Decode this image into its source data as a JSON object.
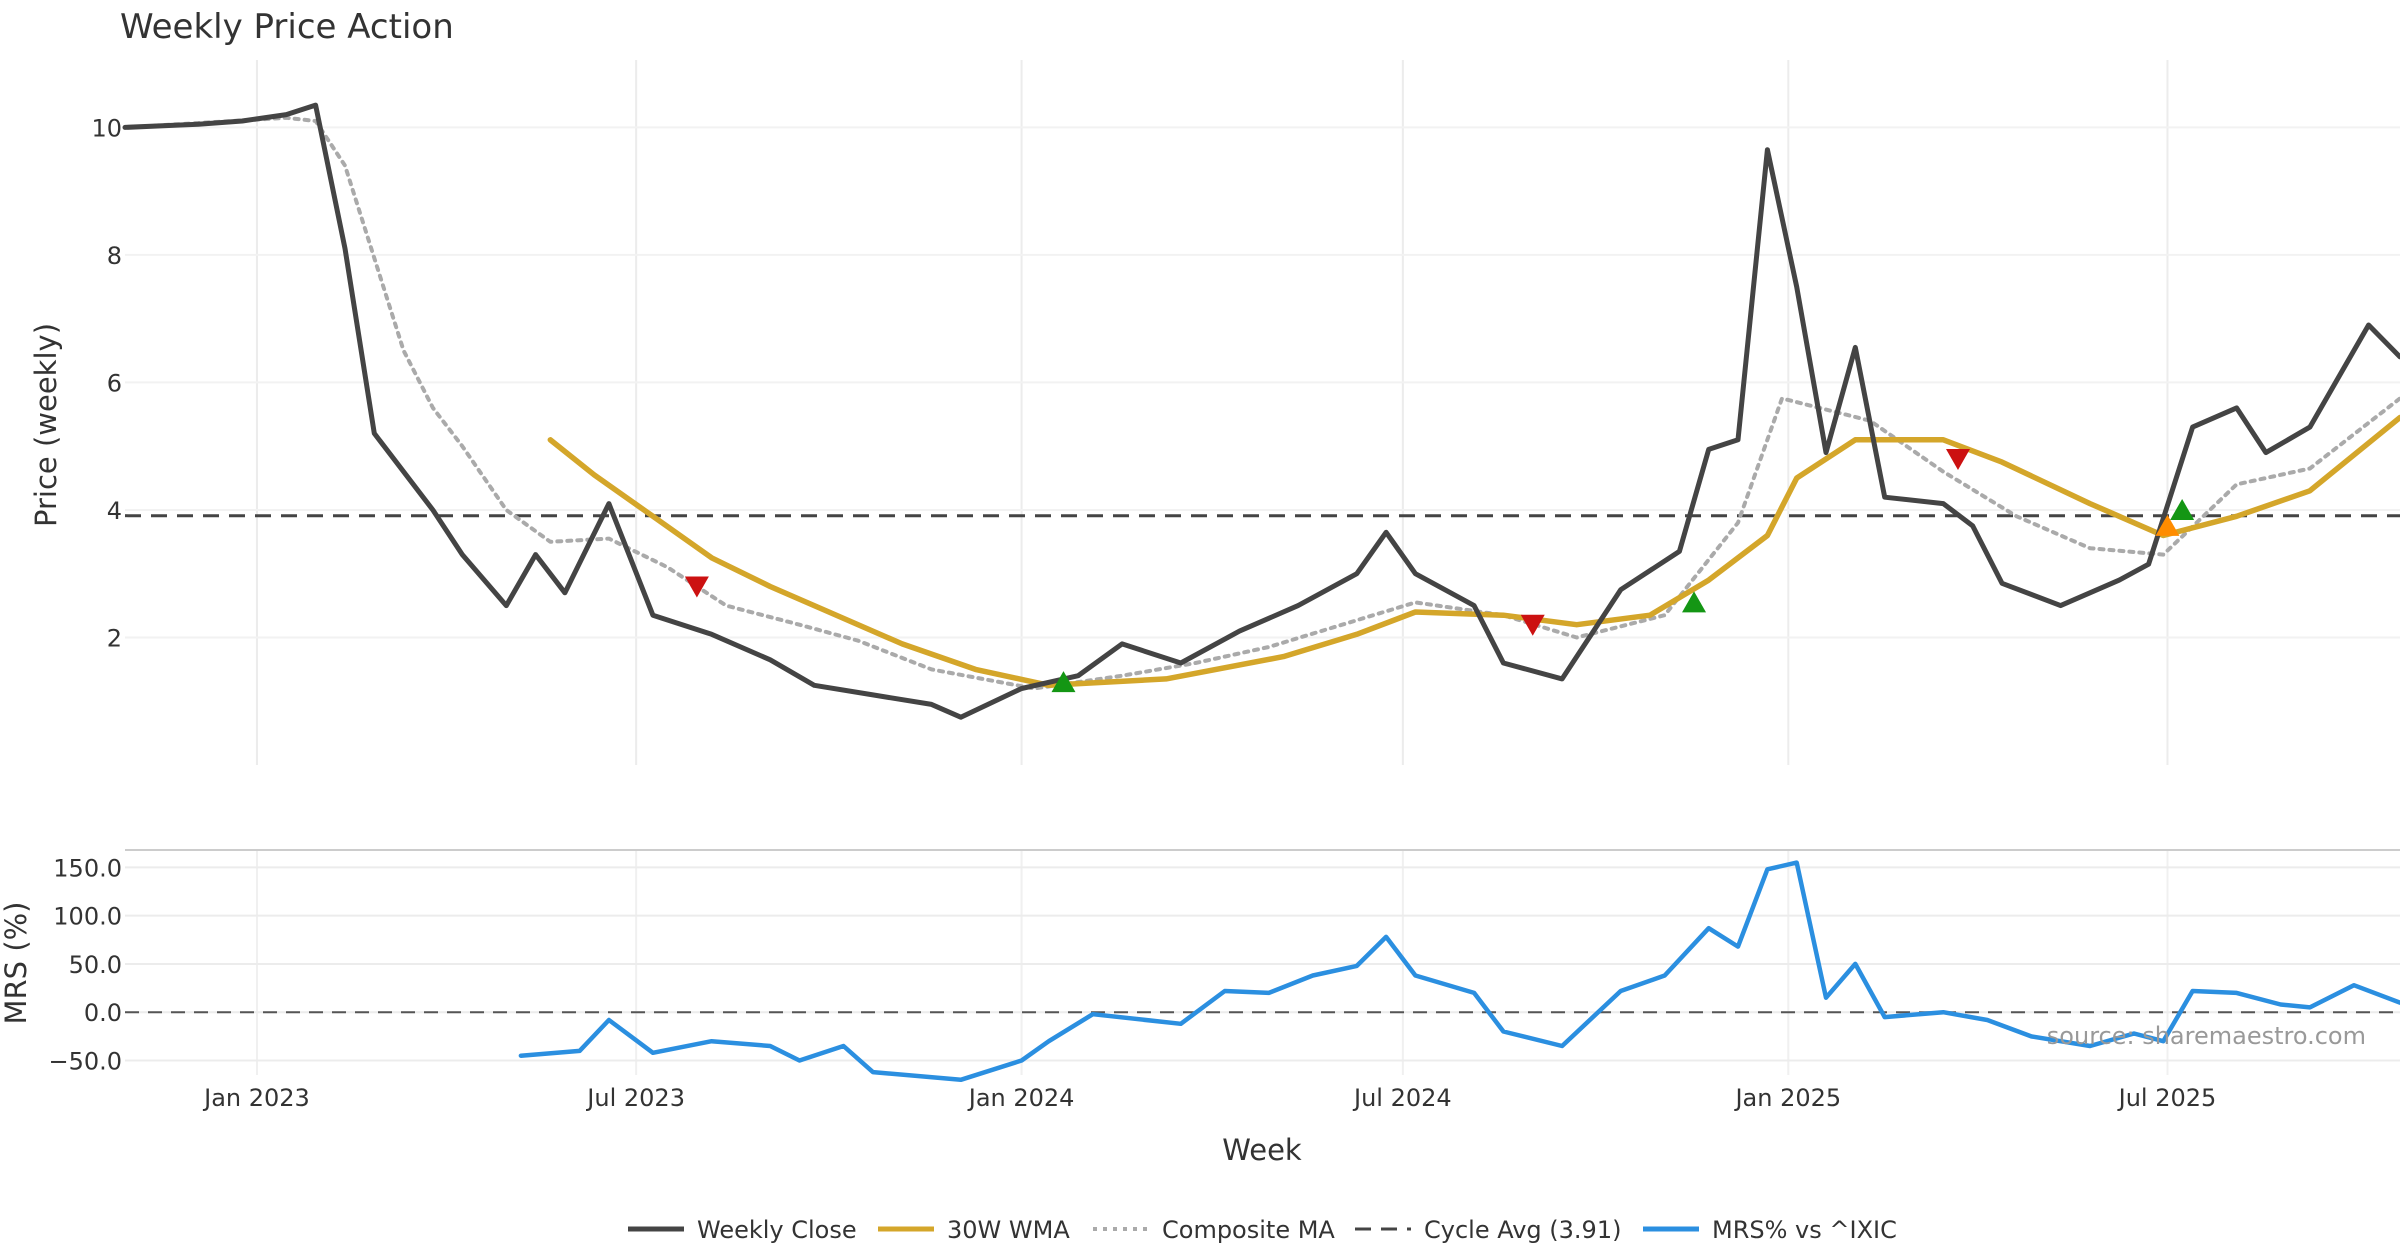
{
  "chart_data": {
    "title": "Weekly Price Action",
    "source": "source: sharemaestro.com",
    "xlabel": "Week",
    "x_ticks": [
      {
        "date": "2023-01-01",
        "label": "Jan 2023"
      },
      {
        "date": "2023-07-01",
        "label": "Jul 2023"
      },
      {
        "date": "2024-01-01",
        "label": "Jan 2024"
      },
      {
        "date": "2024-07-01",
        "label": "Jul 2024"
      },
      {
        "date": "2025-01-01",
        "label": "Jan 2025"
      },
      {
        "date": "2025-07-01",
        "label": "Jul 2025"
      }
    ],
    "x_range": [
      "2022-10-30",
      "2025-10-20"
    ],
    "price_panel": {
      "type": "line",
      "ylabel": "Price (weekly)",
      "ylim": [
        0.0,
        10.9
      ],
      "y_ticks": [
        {
          "value": 2,
          "label": "2"
        },
        {
          "value": 4,
          "label": "4"
        },
        {
          "value": 6,
          "label": "6"
        },
        {
          "value": 8,
          "label": "8"
        },
        {
          "value": 10,
          "label": "10"
        }
      ],
      "cycle_avg": 3.91,
      "series": [
        {
          "name": "Weekly Close",
          "color": "#444444",
          "style": "solid",
          "points": [
            [
              "2022-10-30",
              10.0
            ],
            [
              "2022-12-04",
              10.05
            ],
            [
              "2022-12-25",
              10.1
            ],
            [
              "2023-01-15",
              10.2
            ],
            [
              "2023-01-29",
              10.35
            ],
            [
              "2023-02-12",
              8.1
            ],
            [
              "2023-02-26",
              5.2
            ],
            [
              "2023-03-26",
              4.0
            ],
            [
              "2023-04-09",
              3.3
            ],
            [
              "2023-04-30",
              2.5
            ],
            [
              "2023-05-14",
              3.3
            ],
            [
              "2023-05-28",
              2.7
            ],
            [
              "2023-06-18",
              4.1
            ],
            [
              "2023-07-09",
              2.35
            ],
            [
              "2023-08-06",
              2.05
            ],
            [
              "2023-09-03",
              1.65
            ],
            [
              "2023-09-24",
              1.25
            ],
            [
              "2023-10-22",
              1.1
            ],
            [
              "2023-11-19",
              0.95
            ],
            [
              "2023-12-03",
              0.75
            ],
            [
              "2024-01-01",
              1.2
            ],
            [
              "2024-01-28",
              1.4
            ],
            [
              "2024-02-18",
              1.9
            ],
            [
              "2024-03-17",
              1.6
            ],
            [
              "2024-04-14",
              2.1
            ],
            [
              "2024-05-12",
              2.5
            ],
            [
              "2024-06-09",
              3.0
            ],
            [
              "2024-06-23",
              3.65
            ],
            [
              "2024-07-07",
              3.0
            ],
            [
              "2024-08-04",
              2.5
            ],
            [
              "2024-08-18",
              1.6
            ],
            [
              "2024-09-15",
              1.35
            ],
            [
              "2024-10-13",
              2.75
            ],
            [
              "2024-11-10",
              3.35
            ],
            [
              "2024-11-24",
              4.95
            ],
            [
              "2024-12-08",
              5.1
            ],
            [
              "2024-12-22",
              9.65
            ],
            [
              "2025-01-05",
              7.5
            ],
            [
              "2025-01-19",
              4.9
            ],
            [
              "2025-02-02",
              6.55
            ],
            [
              "2025-02-16",
              4.2
            ],
            [
              "2025-03-16",
              4.1
            ],
            [
              "2025-03-30",
              3.75
            ],
            [
              "2025-04-13",
              2.85
            ],
            [
              "2025-05-11",
              2.5
            ],
            [
              "2025-06-08",
              2.9
            ],
            [
              "2025-06-22",
              3.15
            ],
            [
              "2025-07-13",
              5.3
            ],
            [
              "2025-08-03",
              5.6
            ],
            [
              "2025-08-17",
              4.9
            ],
            [
              "2025-09-07",
              5.3
            ],
            [
              "2025-10-05",
              6.9
            ],
            [
              "2025-10-20",
              6.4
            ]
          ]
        },
        {
          "name": "30W WMA",
          "color": "#d4a62a",
          "style": "solid",
          "points": [
            [
              "2023-05-21",
              5.1
            ],
            [
              "2023-06-11",
              4.55
            ],
            [
              "2023-07-09",
              3.9
            ],
            [
              "2023-08-06",
              3.25
            ],
            [
              "2023-09-03",
              2.8
            ],
            [
              "2023-10-01",
              2.4
            ],
            [
              "2023-11-05",
              1.9
            ],
            [
              "2023-12-10",
              1.5
            ],
            [
              "2024-01-14",
              1.25
            ],
            [
              "2024-03-10",
              1.35
            ],
            [
              "2024-05-05",
              1.7
            ],
            [
              "2024-06-09",
              2.05
            ],
            [
              "2024-07-07",
              2.4
            ],
            [
              "2024-08-18",
              2.35
            ],
            [
              "2024-09-22",
              2.2
            ],
            [
              "2024-10-27",
              2.35
            ],
            [
              "2024-11-24",
              2.9
            ],
            [
              "2024-12-22",
              3.6
            ],
            [
              "2025-01-05",
              4.5
            ],
            [
              "2025-02-02",
              5.1
            ],
            [
              "2025-03-16",
              5.1
            ],
            [
              "2025-04-13",
              4.75
            ],
            [
              "2025-05-25",
              4.1
            ],
            [
              "2025-06-29",
              3.6
            ],
            [
              "2025-08-03",
              3.9
            ],
            [
              "2025-09-07",
              4.3
            ],
            [
              "2025-10-20",
              5.45
            ]
          ]
        },
        {
          "name": "Composite MA",
          "color": "#aaaaaa",
          "style": "dotted",
          "points": [
            [
              "2022-10-30",
              10.0
            ],
            [
              "2023-01-15",
              10.15
            ],
            [
              "2023-01-29",
              10.1
            ],
            [
              "2023-02-12",
              9.4
            ],
            [
              "2023-03-12",
              6.5
            ],
            [
              "2023-03-26",
              5.6
            ],
            [
              "2023-04-09",
              5.0
            ],
            [
              "2023-04-30",
              4.0
            ],
            [
              "2023-05-21",
              3.5
            ],
            [
              "2023-06-18",
              3.55
            ],
            [
              "2023-07-16",
              3.1
            ],
            [
              "2023-08-13",
              2.5
            ],
            [
              "2023-09-17",
              2.2
            ],
            [
              "2023-10-15",
              1.95
            ],
            [
              "2023-11-19",
              1.5
            ],
            [
              "2024-01-07",
              1.2
            ],
            [
              "2024-02-18",
              1.4
            ],
            [
              "2024-03-24",
              1.6
            ],
            [
              "2024-04-28",
              1.85
            ],
            [
              "2024-06-02",
              2.2
            ],
            [
              "2024-07-07",
              2.55
            ],
            [
              "2024-08-18",
              2.35
            ],
            [
              "2024-09-22",
              2.0
            ],
            [
              "2024-11-03",
              2.35
            ],
            [
              "2024-12-08",
              3.8
            ],
            [
              "2024-12-29",
              5.75
            ],
            [
              "2025-02-09",
              5.4
            ],
            [
              "2025-03-16",
              4.6
            ],
            [
              "2025-04-20",
              3.9
            ],
            [
              "2025-05-25",
              3.4
            ],
            [
              "2025-06-29",
              3.3
            ],
            [
              "2025-08-03",
              4.4
            ],
            [
              "2025-09-07",
              4.65
            ],
            [
              "2025-10-20",
              5.75
            ]
          ]
        }
      ],
      "signals": [
        {
          "date": "2023-07-30",
          "value": 2.8,
          "type": "sell",
          "color": "#cc1111"
        },
        {
          "date": "2024-01-21",
          "value": 1.3,
          "type": "buy",
          "color": "#149614"
        },
        {
          "date": "2024-09-01",
          "value": 2.2,
          "type": "sell",
          "color": "#cc1111"
        },
        {
          "date": "2024-11-17",
          "value": 2.55,
          "type": "buy",
          "color": "#149614"
        },
        {
          "date": "2025-03-23",
          "value": 4.8,
          "type": "sell",
          "color": "#cc1111"
        },
        {
          "date": "2025-07-01",
          "value": 3.75,
          "type": "buy",
          "color": "#ff8c00"
        },
        {
          "date": "2025-07-08",
          "value": 4.0,
          "type": "buy",
          "color": "#149614"
        }
      ]
    },
    "mrs_panel": {
      "type": "line",
      "ylabel": "MRS (%)",
      "ylim": [
        -65,
        168
      ],
      "y_ticks": [
        {
          "value": 150,
          "label": "150.0"
        },
        {
          "value": 100,
          "label": "100.0"
        },
        {
          "value": 50,
          "label": "50.0"
        },
        {
          "value": 0,
          "label": "0.0"
        },
        {
          "value": -50,
          "label": "−50.0"
        }
      ],
      "zero_line": 0,
      "series": [
        {
          "name": "MRS% vs ^IXIC",
          "color": "#2b8fe0",
          "style": "solid",
          "points": [
            [
              "2023-05-07",
              -45
            ],
            [
              "2023-06-04",
              -40
            ],
            [
              "2023-06-18",
              -8
            ],
            [
              "2023-07-09",
              -42
            ],
            [
              "2023-08-06",
              -30
            ],
            [
              "2023-09-03",
              -35
            ],
            [
              "2023-09-17",
              -50
            ],
            [
              "2023-10-08",
              -35
            ],
            [
              "2023-10-22",
              -62
            ],
            [
              "2023-12-03",
              -70
            ],
            [
              "2024-01-01",
              -50
            ],
            [
              "2024-01-14",
              -30
            ],
            [
              "2024-02-04",
              -2
            ],
            [
              "2024-03-17",
              -12
            ],
            [
              "2024-04-07",
              22
            ],
            [
              "2024-04-28",
              20
            ],
            [
              "2024-05-19",
              38
            ],
            [
              "2024-06-09",
              48
            ],
            [
              "2024-06-23",
              78
            ],
            [
              "2024-07-07",
              38
            ],
            [
              "2024-08-04",
              20
            ],
            [
              "2024-08-18",
              -20
            ],
            [
              "2024-09-15",
              -35
            ],
            [
              "2024-10-13",
              22
            ],
            [
              "2024-11-03",
              38
            ],
            [
              "2024-11-24",
              87
            ],
            [
              "2024-12-08",
              68
            ],
            [
              "2024-12-22",
              148
            ],
            [
              "2025-01-05",
              155
            ],
            [
              "2025-01-19",
              15
            ],
            [
              "2025-02-02",
              50
            ],
            [
              "2025-02-16",
              -5
            ],
            [
              "2025-03-16",
              0
            ],
            [
              "2025-04-06",
              -8
            ],
            [
              "2025-04-27",
              -25
            ],
            [
              "2025-05-25",
              -35
            ],
            [
              "2025-06-15",
              -22
            ],
            [
              "2025-06-29",
              -30
            ],
            [
              "2025-07-13",
              22
            ],
            [
              "2025-08-03",
              20
            ],
            [
              "2025-08-24",
              8
            ],
            [
              "2025-09-07",
              5
            ],
            [
              "2025-09-28",
              28
            ],
            [
              "2025-10-20",
              10
            ]
          ]
        }
      ]
    },
    "legend": {
      "placement": "bottom-center",
      "entries": [
        {
          "label": "Weekly Close",
          "color": "#444444",
          "style": "solid"
        },
        {
          "label": "30W WMA",
          "color": "#d4a62a",
          "style": "solid"
        },
        {
          "label": "Composite MA",
          "color": "#aaaaaa",
          "style": "dotted"
        },
        {
          "label": "Cycle Avg (3.91)",
          "color": "#444444",
          "style": "dashed"
        },
        {
          "label": "MRS% vs ^IXIC",
          "color": "#2b8fe0",
          "style": "solid"
        }
      ]
    },
    "grid": true
  }
}
